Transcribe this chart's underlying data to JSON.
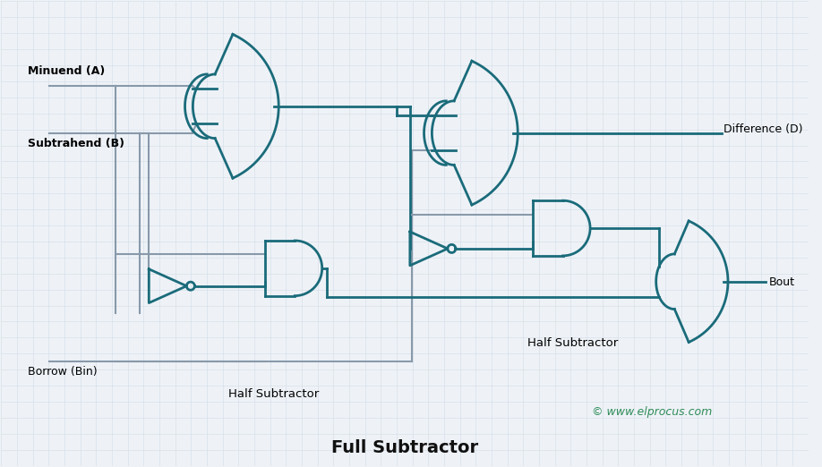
{
  "title": "Full Subtractor",
  "watermark": "© www.elprocus.com",
  "labels": {
    "minuend": "Minuend (A)",
    "subtrahend": "Subtrahend (B)",
    "borrow": "Borrow (Bin)",
    "difference": "Difference (D)",
    "bout": "Bout",
    "hs1": "Half Subtractor",
    "hs2": "Half Subtractor"
  },
  "gate_color": "#1a6b7a",
  "wire_color": "#8899aa",
  "bg_color": "#eef2f7",
  "grid_color": "#d8e0ea",
  "title_color": "#111111",
  "watermark_color": "#2e8b57",
  "line_width": 2.0,
  "thin_wire": 1.5
}
